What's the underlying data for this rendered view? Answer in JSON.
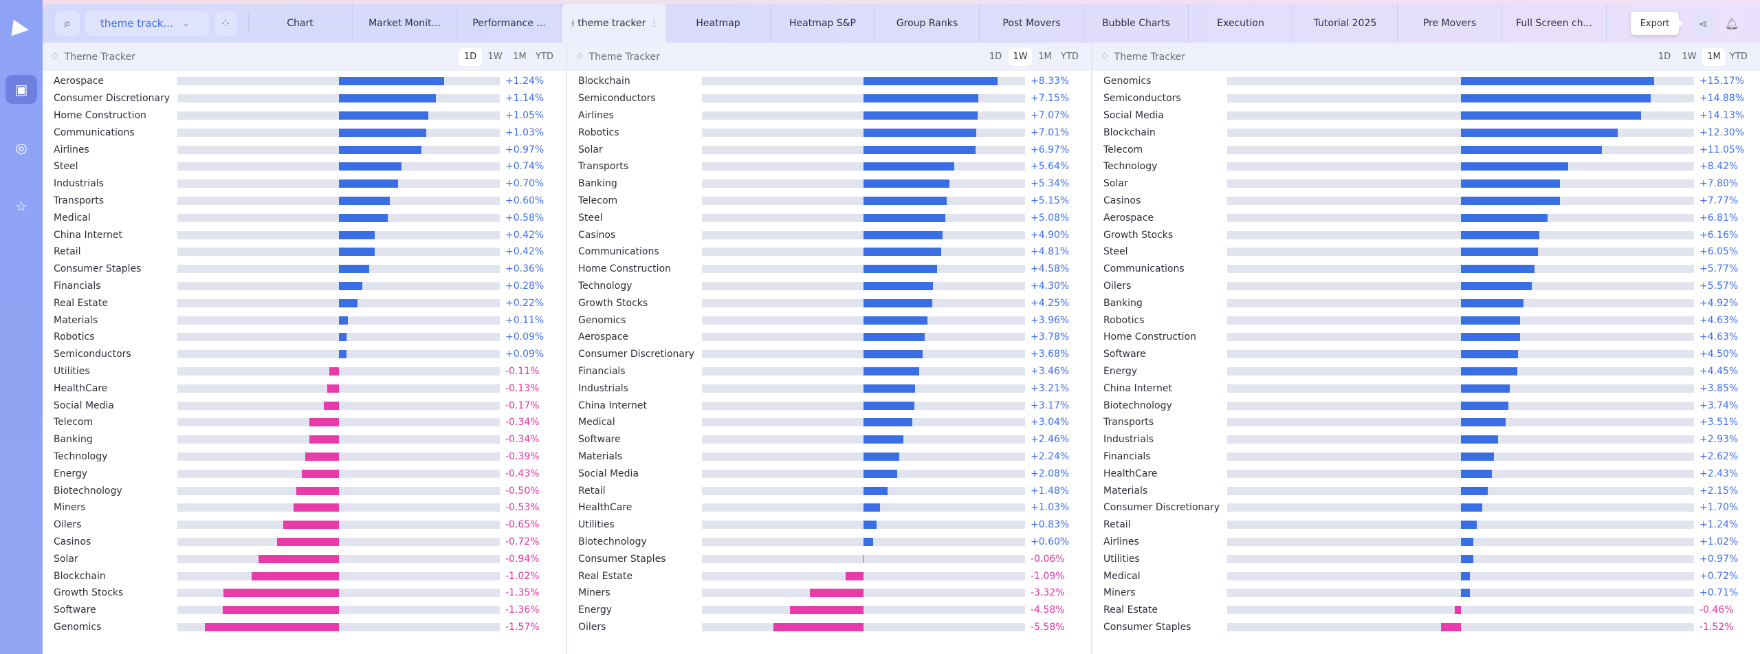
{
  "colors": {
    "positive": "#3a6ee4",
    "negative": "#e83aa8",
    "pos_text": "#3d6ff0",
    "neg_text": "#e0339f"
  },
  "sidebar": {
    "items": [
      {
        "icon": "logo-icon"
      },
      {
        "icon": "layout-icon",
        "active": true
      },
      {
        "icon": "radar-icon"
      },
      {
        "icon": "star-icon"
      }
    ]
  },
  "topbar": {
    "search_icon": "search-icon",
    "workspace_dropdown": "theme track...",
    "tabs": [
      {
        "label": "Chart"
      },
      {
        "label": "Market Monit..."
      },
      {
        "label": "Performance ..."
      },
      {
        "label": "theme tracker",
        "active": true
      },
      {
        "label": "Heatmap"
      },
      {
        "label": "Heatmap S&P"
      },
      {
        "label": "Group Ranks"
      },
      {
        "label": "Post Movers"
      },
      {
        "label": "Bubble Charts"
      },
      {
        "label": "Execution"
      },
      {
        "label": "Tutorial 2025"
      },
      {
        "label": "Pre Movers"
      },
      {
        "label": "Full Screen ch..."
      }
    ],
    "export_tooltip": "Export"
  },
  "panels": [
    {
      "title": "Theme Tracker",
      "periods": [
        "1D",
        "1W",
        "1M",
        "YTD"
      ],
      "active_period": "1D",
      "rows": [
        [
          "Aerospace",
          1.24
        ],
        [
          "Consumer Discretionary",
          1.14
        ],
        [
          "Home Construction",
          1.05
        ],
        [
          "Communications",
          1.03
        ],
        [
          "Airlines",
          0.97
        ],
        [
          "Steel",
          0.74
        ],
        [
          "Industrials",
          0.7
        ],
        [
          "Transports",
          0.6
        ],
        [
          "Medical",
          0.58
        ],
        [
          "China Internet",
          0.42
        ],
        [
          "Retail",
          0.42
        ],
        [
          "Consumer Staples",
          0.36
        ],
        [
          "Financials",
          0.28
        ],
        [
          "Real Estate",
          0.22
        ],
        [
          "Materials",
          0.11
        ],
        [
          "Robotics",
          0.09
        ],
        [
          "Semiconductors",
          0.09
        ],
        [
          "Utilities",
          -0.11
        ],
        [
          "HealthCare",
          -0.13
        ],
        [
          "Social Media",
          -0.17
        ],
        [
          "Telecom",
          -0.34
        ],
        [
          "Banking",
          -0.34
        ],
        [
          "Technology",
          -0.39
        ],
        [
          "Energy",
          -0.43
        ],
        [
          "Biotechnology",
          -0.5
        ],
        [
          "Miners",
          -0.53
        ],
        [
          "Oilers",
          -0.65
        ],
        [
          "Casinos",
          -0.72
        ],
        [
          "Solar",
          -0.94
        ],
        [
          "Blockchain",
          -1.02
        ],
        [
          "Growth Stocks",
          -1.35
        ],
        [
          "Software",
          -1.36
        ],
        [
          "Genomics",
          -1.57
        ]
      ]
    },
    {
      "title": "Theme Tracker",
      "periods": [
        "1D",
        "1W",
        "1M",
        "YTD"
      ],
      "active_period": "1W",
      "rows": [
        [
          "Blockchain",
          8.33
        ],
        [
          "Semiconductors",
          7.15
        ],
        [
          "Airlines",
          7.07
        ],
        [
          "Robotics",
          7.01
        ],
        [
          "Solar",
          6.97
        ],
        [
          "Transports",
          5.64
        ],
        [
          "Banking",
          5.34
        ],
        [
          "Telecom",
          5.15
        ],
        [
          "Steel",
          5.08
        ],
        [
          "Casinos",
          4.9
        ],
        [
          "Communications",
          4.81
        ],
        [
          "Home Construction",
          4.58
        ],
        [
          "Technology",
          4.3
        ],
        [
          "Growth Stocks",
          4.25
        ],
        [
          "Genomics",
          3.96
        ],
        [
          "Aerospace",
          3.78
        ],
        [
          "Consumer Discretionary",
          3.68
        ],
        [
          "Financials",
          3.46
        ],
        [
          "Industrials",
          3.21
        ],
        [
          "China Internet",
          3.17
        ],
        [
          "Medical",
          3.04
        ],
        [
          "Software",
          2.46
        ],
        [
          "Materials",
          2.24
        ],
        [
          "Social Media",
          2.08
        ],
        [
          "Retail",
          1.48
        ],
        [
          "HealthCare",
          1.03
        ],
        [
          "Utilities",
          0.83
        ],
        [
          "Biotechnology",
          0.6
        ],
        [
          "Consumer Staples",
          -0.06
        ],
        [
          "Real Estate",
          -1.09
        ],
        [
          "Miners",
          -3.32
        ],
        [
          "Energy",
          -4.58
        ],
        [
          "Oilers",
          -5.58
        ]
      ]
    },
    {
      "title": "Theme Tracker",
      "periods": [
        "1D",
        "1W",
        "1M",
        "YTD"
      ],
      "active_period": "1M",
      "rows": [
        [
          "Genomics",
          15.17
        ],
        [
          "Semiconductors",
          14.88
        ],
        [
          "Social Media",
          14.13
        ],
        [
          "Blockchain",
          12.3
        ],
        [
          "Telecom",
          11.05
        ],
        [
          "Technology",
          8.42
        ],
        [
          "Solar",
          7.8
        ],
        [
          "Casinos",
          7.77
        ],
        [
          "Aerospace",
          6.81
        ],
        [
          "Growth Stocks",
          6.16
        ],
        [
          "Steel",
          6.05
        ],
        [
          "Communications",
          5.77
        ],
        [
          "Oilers",
          5.57
        ],
        [
          "Banking",
          4.92
        ],
        [
          "Robotics",
          4.63
        ],
        [
          "Home Construction",
          4.63
        ],
        [
          "Software",
          4.5
        ],
        [
          "Energy",
          4.45
        ],
        [
          "China Internet",
          3.85
        ],
        [
          "Biotechnology",
          3.74
        ],
        [
          "Transports",
          3.51
        ],
        [
          "Industrials",
          2.93
        ],
        [
          "Financials",
          2.62
        ],
        [
          "HealthCare",
          2.43
        ],
        [
          "Materials",
          2.15
        ],
        [
          "Consumer Discretionary",
          1.7
        ],
        [
          "Retail",
          1.24
        ],
        [
          "Airlines",
          1.02
        ],
        [
          "Utilities",
          0.97
        ],
        [
          "Medical",
          0.72
        ],
        [
          "Miners",
          0.71
        ],
        [
          "Real Estate",
          -0.46
        ],
        [
          "Consumer Staples",
          -1.52
        ]
      ]
    }
  ]
}
